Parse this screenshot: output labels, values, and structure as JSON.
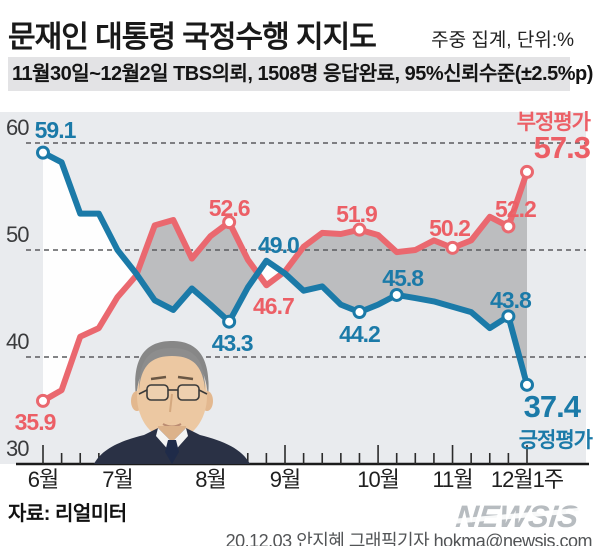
{
  "header": {
    "title_regular": "문재인 대통령",
    "title_bold": " 국정수행 지지도",
    "note": "주중 집계, 단위:%",
    "subtitle": "11월30일~12월2일 TBS의뢰, 1508명 응답완료, 95%신뢰수준(±2.5%p)"
  },
  "footer": {
    "source": "자료: 리얼미터",
    "credit": "20.12.03 안지혜 그래픽기자 hokma@newsis.com",
    "watermark": "NEWSIS"
  },
  "colors": {
    "negative_line": "#ea686f",
    "positive_line": "#1b7aa8",
    "negative_text": "#ec5f66",
    "positive_text": "#1b7aa8",
    "fill_red_above": "#bcbdbf",
    "fill_blue_above": "#fefefe",
    "plot_bg": "#e9ebee",
    "grid": "#5a5b5e",
    "axis": "#1b1b1b",
    "tick": "#2b2b2b"
  },
  "chart_data": {
    "type": "line",
    "title": "문재인 대통령 국정수행 지지도",
    "unit": "%",
    "x_tick_labels": [
      "6월",
      "7월",
      "8월",
      "9월",
      "10월",
      "11월",
      "12월1주"
    ],
    "month_week_index": [
      0,
      4,
      9,
      13,
      18,
      22,
      26
    ],
    "weeks_total": 27,
    "ylim": [
      30,
      62
    ],
    "yticks": [
      30,
      40,
      50,
      60
    ],
    "grid_style": "dashed horizontal at 40/50/60, solid axis at 30",
    "legend_position": "line-end labels, right side",
    "fill_between": "gray where negative above positive, white where positive above negative",
    "series": [
      {
        "name": "부정평가",
        "role": "negative",
        "color": "#ea686f",
        "values": [
          35.9,
          36.9,
          41.9,
          42.7,
          45.6,
          47.6,
          52.3,
          52.8,
          49.2,
          51.3,
          52.6,
          49.1,
          46.7,
          48.0,
          50.3,
          51.6,
          51.5,
          51.9,
          51.4,
          49.8,
          50.0,
          50.9,
          50.2,
          50.9,
          53.1,
          52.2,
          57.3
        ],
        "labels": [
          {
            "i": 0,
            "text": "35.9",
            "side": "below",
            "dot": true,
            "dx": -8,
            "dy": 0
          },
          {
            "i": 10,
            "text": "52.6",
            "side": "above",
            "dot": true,
            "dx": 0,
            "dy": 2
          },
          {
            "i": 12,
            "text": "46.7",
            "side": "below",
            "dot": false,
            "dx": 7,
            "dy": 0
          },
          {
            "i": 17,
            "text": "51.9",
            "side": "above",
            "dot": true,
            "dx": -3,
            "dy": 0
          },
          {
            "i": 22,
            "text": "50.2",
            "side": "above",
            "dot": true,
            "dx": -3,
            "dy": -4
          },
          {
            "i": 25,
            "text": "52.2",
            "side": "above",
            "dot": true,
            "dx": 7,
            "dy": -1
          },
          {
            "i": 26,
            "text": "57.3",
            "side": "end-top",
            "dot": true,
            "dx": 0,
            "dy": 0
          }
        ]
      },
      {
        "name": "긍정평가",
        "role": "positive",
        "color": "#1b7aa8",
        "values": [
          59.1,
          58.2,
          53.4,
          53.4,
          50.0,
          47.8,
          45.3,
          44.4,
          46.4,
          44.9,
          43.3,
          46.5,
          49.0,
          47.8,
          46.2,
          46.6,
          44.9,
          44.2,
          44.9,
          45.8,
          45.5,
          45.2,
          44.7,
          44.2,
          42.7,
          43.8,
          37.4
        ],
        "labels": [
          {
            "i": 0,
            "text": "59.1",
            "side": "above",
            "dot": true,
            "dx": 12,
            "dy": -7
          },
          {
            "i": 10,
            "text": "43.3",
            "side": "below",
            "dot": true,
            "dx": 3,
            "dy": 0
          },
          {
            "i": 12,
            "text": "49.0",
            "side": "above",
            "dot": false,
            "dx": 12,
            "dy": 0
          },
          {
            "i": 17,
            "text": "44.2",
            "side": "below",
            "dot": true,
            "dx": 0,
            "dy": 1
          },
          {
            "i": 19,
            "text": "45.8",
            "side": "above",
            "dot": true,
            "dx": 6,
            "dy": -1
          },
          {
            "i": 25,
            "text": "43.8",
            "side": "above",
            "dot": true,
            "dx": 2,
            "dy": 0
          },
          {
            "i": 26,
            "text": "37.4",
            "side": "end-bottom",
            "dot": true,
            "dx": 0,
            "dy": 0
          }
        ]
      }
    ]
  }
}
